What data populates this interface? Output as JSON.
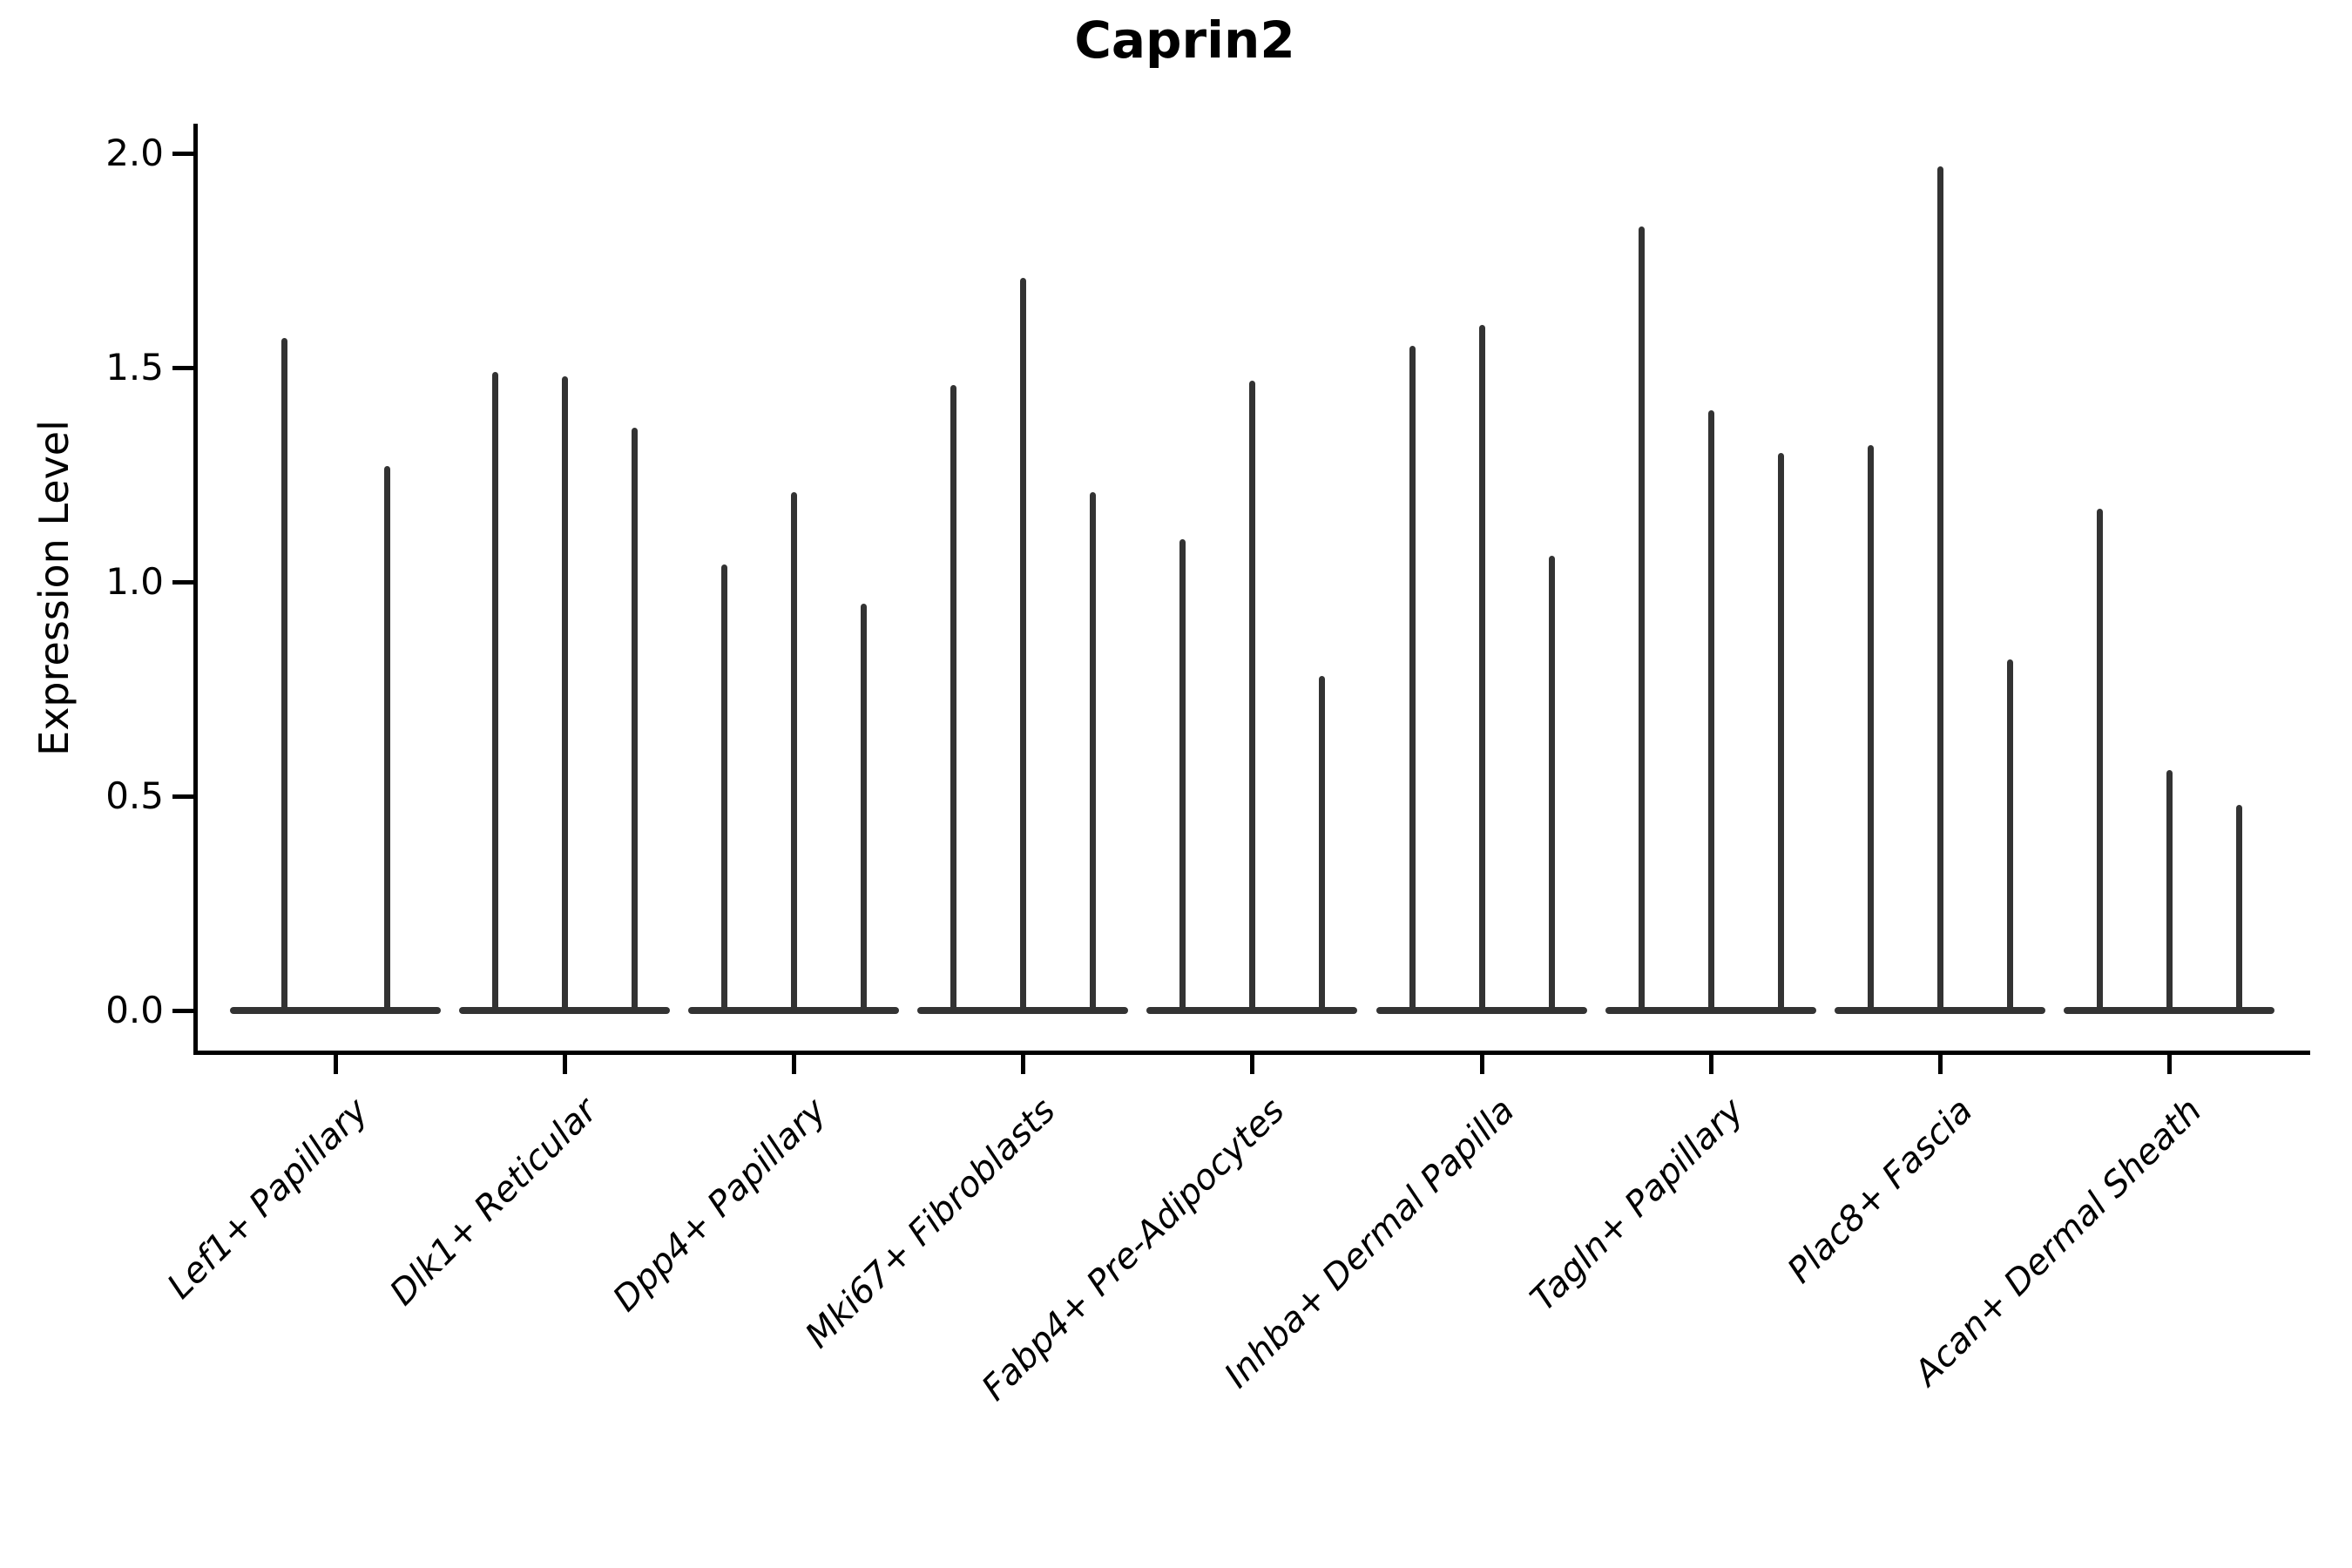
{
  "title": "Caprin2",
  "y_axis": {
    "label": "Expression Level",
    "tick_labels": [
      "0.0",
      "0.5",
      "1.0",
      "1.5",
      "2.0"
    ]
  },
  "chart_data": {
    "type": "violin",
    "title": "Caprin2",
    "xlabel": "",
    "ylabel": "Expression Level",
    "ylim": [
      0,
      2.0
    ],
    "yticks": [
      0.0,
      0.5,
      1.0,
      1.5,
      2.0
    ],
    "grid": "off",
    "legend": "none",
    "violin_color": "#333333",
    "description": "Narrow spike-shaped violins: expression mass concentrated at 0 with thin tails reaching each listed maximum. Groups with three violins share the category; first group has two violins.",
    "categories": [
      "Lef1+ Papillary",
      "Dlk1+ Reticular",
      "Dpp4+ Papillary",
      "Mki67+ Fibroblasts",
      "Fabp4+ Pre-Adipocytes",
      "Inhba+ Dermal Papilla",
      "Tagln+ Papillary",
      "Plac8+ Fascia",
      "Acan+ Dermal Sheath"
    ],
    "groups": [
      {
        "label": "Lef1+ Papillary",
        "violin_min": 0,
        "violin_maxima": [
          1.57,
          1.27
        ]
      },
      {
        "label": "Dlk1+ Reticular",
        "violin_min": 0,
        "violin_maxima": [
          1.49,
          1.48,
          1.36
        ]
      },
      {
        "label": "Dpp4+ Papillary",
        "violin_min": 0,
        "violin_maxima": [
          1.04,
          1.21,
          0.95
        ]
      },
      {
        "label": "Mki67+ Fibroblasts",
        "violin_min": 0,
        "violin_maxima": [
          1.46,
          1.71,
          1.21
        ]
      },
      {
        "label": "Fabp4+ Pre-Adipocytes",
        "violin_min": 0,
        "violin_maxima": [
          1.1,
          1.47,
          0.78
        ]
      },
      {
        "label": "Inhba+ Dermal Papilla",
        "violin_min": 0,
        "violin_maxima": [
          1.55,
          1.6,
          1.06
        ]
      },
      {
        "label": "Tagln+ Papillary",
        "violin_min": 0,
        "violin_maxima": [
          1.83,
          1.4,
          1.3
        ]
      },
      {
        "label": "Plac8+ Fascia",
        "violin_min": 0,
        "violin_maxima": [
          1.32,
          1.97,
          0.82
        ]
      },
      {
        "label": "Acan+ Dermal Sheath",
        "violin_min": 0,
        "violin_maxima": [
          1.17,
          0.56,
          0.48
        ]
      }
    ]
  }
}
